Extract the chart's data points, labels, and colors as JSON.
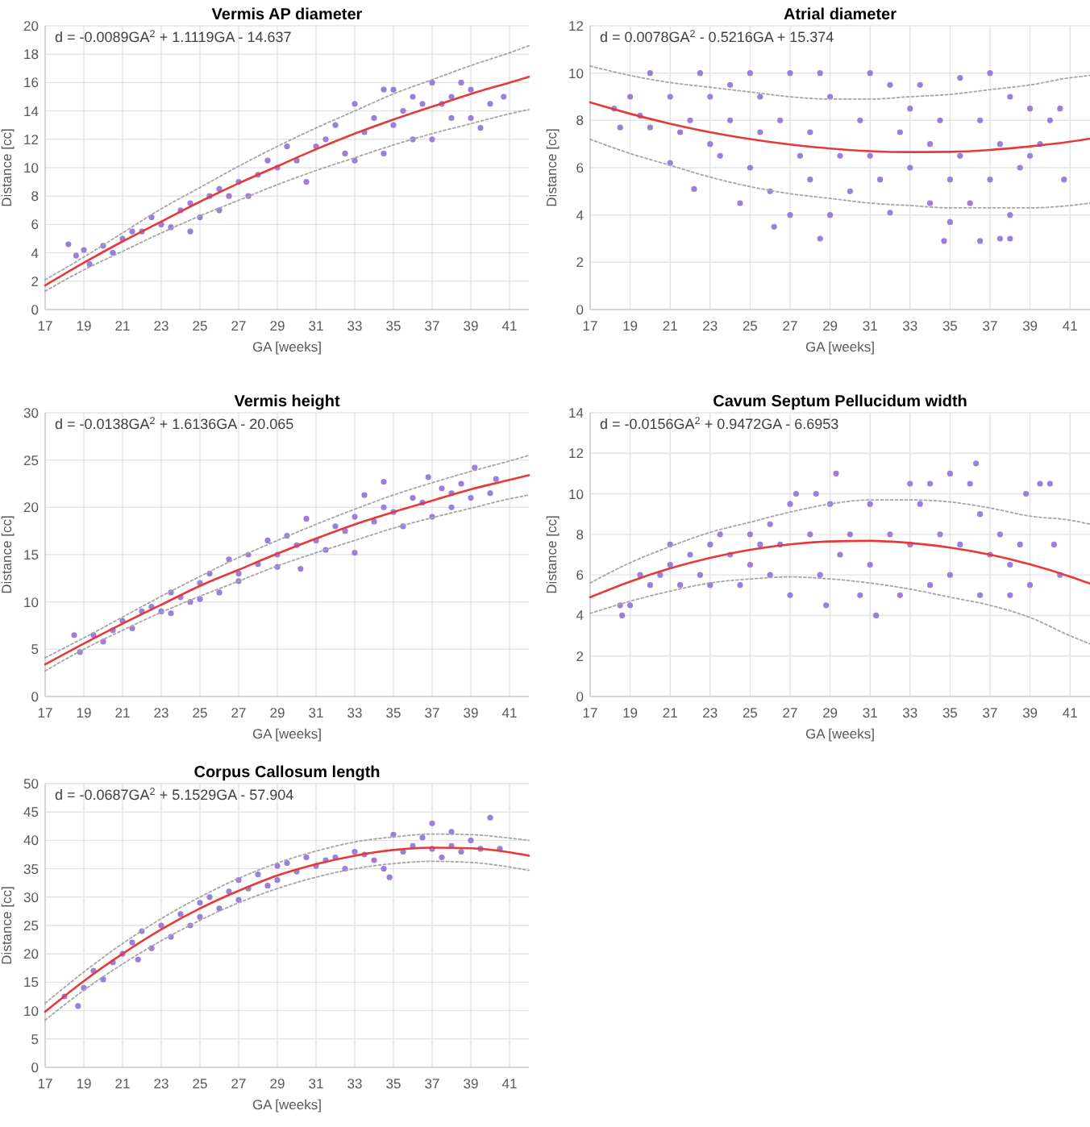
{
  "chart_data": [
    {
      "type": "scatter",
      "title": "Vermis AP diameter",
      "xlabel": "GA [weeks]",
      "ylabel": "Distance [cc]",
      "annotations": [
        "d = -0.0089GA$^{2}$ + 1.1119GA - 14.637"
      ],
      "xlim": [
        17,
        42
      ],
      "xticks": [
        17,
        19,
        21,
        23,
        25,
        27,
        29,
        31,
        33,
        35,
        37,
        39,
        41
      ],
      "ylim": [
        0,
        20
      ],
      "yticks": [
        0,
        2,
        4,
        6,
        8,
        10,
        12,
        14,
        16,
        18,
        20
      ],
      "grid": true,
      "series": [
        {
          "type": "scatter",
          "color": "#9b7fd9",
          "marker": "circle",
          "x": [
            18.2,
            18.6,
            19,
            19.3,
            20,
            20.5,
            21,
            21.5,
            22,
            22.5,
            23,
            23.5,
            24,
            24.5,
            24.5,
            25,
            25.5,
            26,
            26,
            26.5,
            27,
            27.5,
            28,
            28.5,
            29,
            29.5,
            30,
            30.5,
            31,
            31.5,
            32,
            32.5,
            33,
            33,
            33.5,
            34,
            34.5,
            34.5,
            35,
            35,
            35.5,
            36,
            36,
            36.5,
            37,
            37,
            37.5,
            38,
            38,
            38.5,
            39,
            39,
            39.5,
            40,
            40.7
          ],
          "values": [
            4.6,
            3.8,
            4.2,
            3.2,
            4.5,
            4.0,
            5.0,
            5.5,
            5.5,
            6.5,
            6.0,
            5.8,
            7.0,
            5.5,
            7.5,
            6.5,
            8.0,
            8.5,
            7.0,
            8.0,
            9.0,
            8.0,
            9.5,
            10.5,
            10.0,
            11.5,
            10.5,
            9.0,
            11.5,
            12.0,
            13.0,
            11.0,
            14.5,
            10.5,
            12.5,
            13.5,
            15.5,
            11.0,
            15.5,
            13.0,
            14.0,
            12.0,
            15.0,
            14.5,
            16.0,
            12.0,
            14.5,
            15.0,
            13.5,
            16.0,
            15.5,
            13.5,
            12.8,
            14.5,
            15.0
          ]
        },
        {
          "type": "line",
          "color": "#e8393a",
          "x": [
            17,
            19,
            21,
            23,
            25,
            27,
            29,
            31,
            33,
            35,
            37,
            39,
            41,
            42
          ],
          "values": [
            1.7,
            3.3,
            4.8,
            6.2,
            7.6,
            8.9,
            10.1,
            11.3,
            12.4,
            13.4,
            14.3,
            15.2,
            16.0,
            16.4
          ]
        },
        {
          "type": "line",
          "color": "#a6a6a6",
          "line_style": "dotted",
          "x": [
            17,
            19,
            21,
            23,
            25,
            27,
            29,
            31,
            33,
            35,
            37,
            39,
            41,
            42
          ],
          "values": [
            2.1,
            3.7,
            5.4,
            7.1,
            8.6,
            10.1,
            11.5,
            12.8,
            14.0,
            15.2,
            16.2,
            17.2,
            18.1,
            18.6
          ]
        },
        {
          "type": "line",
          "color": "#a6a6a6",
          "line_style": "dotted",
          "x": [
            17,
            19,
            21,
            23,
            25,
            27,
            29,
            31,
            33,
            35,
            37,
            39,
            41,
            42
          ],
          "values": [
            1.3,
            2.8,
            4.1,
            5.4,
            6.6,
            7.7,
            8.8,
            9.8,
            10.7,
            11.6,
            12.4,
            13.1,
            13.8,
            14.1
          ]
        }
      ]
    },
    {
      "type": "scatter",
      "title": "Atrial diameter",
      "xlabel": "GA [weeks]",
      "ylabel": "Distance [cc]",
      "annotations": [
        "d = 0.0078GA$^{2}$ - 0.5216GA + 15.374"
      ],
      "xlim": [
        17,
        42
      ],
      "xticks": [
        17,
        19,
        21,
        23,
        25,
        27,
        29,
        31,
        33,
        35,
        37,
        39,
        41
      ],
      "ylim": [
        0,
        12
      ],
      "yticks": [
        0,
        2,
        4,
        6,
        8,
        10,
        12
      ],
      "grid": true,
      "series": [
        {
          "type": "scatter",
          "color": "#9b7fd9",
          "marker": "circle",
          "x": [
            18.2,
            18.5,
            19,
            19.5,
            20,
            20,
            21,
            21,
            21.5,
            22,
            22.2,
            22.5,
            23,
            23,
            23.5,
            24,
            24,
            24.5,
            25,
            25,
            25.5,
            25.5,
            26,
            26.2,
            26.5,
            27,
            27,
            27.5,
            28,
            28,
            28.5,
            28.5,
            29,
            29,
            29.5,
            30,
            30.5,
            31,
            31,
            31.5,
            32,
            32,
            32.5,
            33,
            33,
            33.5,
            34,
            34,
            34.5,
            34.7,
            35,
            35,
            35.5,
            35.5,
            36,
            36.5,
            36.5,
            37,
            37,
            37.5,
            37.5,
            38,
            38,
            38,
            38.5,
            39,
            39,
            39.5,
            40,
            40.5,
            40.7
          ],
          "values": [
            8.5,
            7.7,
            9.0,
            8.2,
            10.0,
            7.7,
            9.0,
            6.2,
            7.5,
            8.0,
            5.1,
            10.0,
            9.0,
            7.0,
            6.5,
            9.5,
            8.0,
            4.5,
            10.0,
            6.0,
            7.5,
            9.0,
            5.0,
            3.5,
            8.0,
            10.0,
            4.0,
            6.5,
            7.5,
            5.5,
            10.0,
            3.0,
            9.0,
            4.0,
            6.5,
            5.0,
            8.0,
            10.0,
            6.5,
            5.5,
            9.5,
            4.1,
            7.5,
            8.5,
            6.0,
            9.5,
            7.0,
            4.5,
            8.0,
            2.9,
            3.7,
            5.5,
            9.8,
            6.5,
            4.5,
            8.0,
            2.9,
            10.0,
            5.5,
            3.0,
            7.0,
            9.0,
            4.0,
            3.0,
            6.0,
            8.5,
            6.5,
            7.0,
            8.0,
            8.5,
            5.5
          ]
        },
        {
          "type": "line",
          "color": "#e8393a",
          "x": [
            17,
            19,
            21,
            23,
            25,
            27,
            29,
            31,
            33,
            35,
            37,
            39,
            41,
            42
          ],
          "values": [
            8.76,
            8.28,
            7.86,
            7.5,
            7.21,
            6.98,
            6.81,
            6.7,
            6.66,
            6.67,
            6.75,
            6.9,
            7.1,
            7.23
          ]
        },
        {
          "type": "line",
          "color": "#a6a6a6",
          "line_style": "dotted",
          "x": [
            17,
            19,
            21,
            23,
            25,
            27,
            29,
            31,
            33,
            35,
            37,
            39,
            41,
            42
          ],
          "values": [
            10.3,
            9.9,
            9.6,
            9.4,
            9.2,
            9.0,
            8.9,
            8.9,
            9.0,
            9.1,
            9.3,
            9.5,
            9.8,
            9.9
          ]
        },
        {
          "type": "line",
          "color": "#a6a6a6",
          "line_style": "dotted",
          "x": [
            17,
            19,
            21,
            23,
            25,
            27,
            29,
            31,
            33,
            35,
            37,
            39,
            41,
            42
          ],
          "values": [
            7.2,
            6.6,
            6.1,
            5.6,
            5.2,
            4.9,
            4.7,
            4.5,
            4.4,
            4.3,
            4.3,
            4.3,
            4.4,
            4.5
          ]
        }
      ]
    },
    {
      "type": "scatter",
      "title": "Vermis height",
      "xlabel": "GA [weeks]",
      "ylabel": "Distance [cc]",
      "annotations": [
        "d = -0.0138GA$^{2}$ + 1.6136GA - 20.065"
      ],
      "xlim": [
        17,
        42
      ],
      "xticks": [
        17,
        19,
        21,
        23,
        25,
        27,
        29,
        31,
        33,
        35,
        37,
        39,
        41
      ],
      "ylim": [
        0,
        30
      ],
      "yticks": [
        0,
        5,
        10,
        15,
        20,
        25,
        30
      ],
      "grid": true,
      "series": [
        {
          "type": "scatter",
          "color": "#9b7fd9",
          "marker": "circle",
          "x": [
            18.5,
            18.8,
            19.5,
            20,
            20.5,
            21,
            21.5,
            22,
            22.5,
            23,
            23.5,
            23.5,
            24,
            24.5,
            25,
            25,
            25.5,
            26,
            26.5,
            27,
            27,
            27.5,
            28,
            28.5,
            29,
            29,
            29.5,
            30,
            30.2,
            30.5,
            31,
            31.5,
            32,
            32.5,
            33,
            33,
            33.5,
            34,
            34.5,
            34.5,
            35,
            35.5,
            36,
            36.5,
            36.8,
            37,
            37.5,
            38,
            38,
            38.5,
            39,
            39.2,
            40,
            40.3
          ],
          "values": [
            6.5,
            4.7,
            6.5,
            5.8,
            7.0,
            8.0,
            7.2,
            9.0,
            9.5,
            9.0,
            11.0,
            8.8,
            10.5,
            10.0,
            12.0,
            10.3,
            13.0,
            11.0,
            14.5,
            13.0,
            12.2,
            15.0,
            14.0,
            16.5,
            15.0,
            13.7,
            17.0,
            16.0,
            13.5,
            18.8,
            16.5,
            15.5,
            18.0,
            17.5,
            19.0,
            15.2,
            21.3,
            18.5,
            20.0,
            22.7,
            19.5,
            18.0,
            21.0,
            20.5,
            23.2,
            19.0,
            22.0,
            21.5,
            20.0,
            22.5,
            21.0,
            24.2,
            21.5,
            23.0
          ]
        },
        {
          "type": "line",
          "color": "#e8393a",
          "x": [
            17,
            19,
            21,
            23,
            25,
            27,
            29,
            31,
            33,
            35,
            37,
            39,
            41,
            42
          ],
          "values": [
            3.4,
            5.6,
            7.7,
            9.7,
            11.7,
            13.4,
            15.1,
            16.7,
            18.2,
            19.5,
            20.7,
            21.9,
            22.9,
            23.4
          ]
        },
        {
          "type": "line",
          "color": "#a6a6a6",
          "line_style": "dotted",
          "x": [
            17,
            19,
            21,
            23,
            25,
            27,
            29,
            31,
            33,
            35,
            37,
            39,
            41,
            42
          ],
          "values": [
            4.1,
            6.2,
            8.4,
            10.6,
            12.7,
            14.7,
            16.5,
            18.2,
            19.8,
            21.3,
            22.6,
            23.8,
            24.9,
            25.5
          ]
        },
        {
          "type": "line",
          "color": "#a6a6a6",
          "line_style": "dotted",
          "x": [
            17,
            19,
            21,
            23,
            25,
            27,
            29,
            31,
            33,
            35,
            37,
            39,
            41,
            42
          ],
          "values": [
            2.7,
            5.0,
            7.0,
            8.9,
            10.6,
            12.2,
            13.8,
            15.2,
            16.5,
            17.8,
            18.9,
            19.9,
            20.9,
            21.3
          ]
        }
      ]
    },
    {
      "type": "scatter",
      "title": "Cavum Septum Pellucidum width",
      "xlabel": "GA [weeks]",
      "ylabel": "Distance [cc]",
      "annotations": [
        "d = -0.0156GA$^{2}$ + 0.9472GA - 6.6953"
      ],
      "xlim": [
        17,
        42
      ],
      "xticks": [
        17,
        19,
        21,
        23,
        25,
        27,
        29,
        31,
        33,
        35,
        37,
        39,
        41
      ],
      "ylim": [
        0,
        14
      ],
      "yticks": [
        0,
        2,
        4,
        6,
        8,
        10,
        12,
        14
      ],
      "grid": true,
      "series": [
        {
          "type": "scatter",
          "color": "#9b7fd9",
          "marker": "circle",
          "x": [
            18.5,
            18.6,
            19,
            19.5,
            20,
            20.5,
            21,
            21,
            21.5,
            22,
            22.5,
            23,
            23,
            23.5,
            24,
            24.5,
            25,
            25,
            25.5,
            26,
            26,
            26.5,
            27,
            27,
            27.3,
            28,
            28.3,
            28.5,
            28.8,
            29,
            29.3,
            29.5,
            30,
            30.5,
            31,
            31,
            31.3,
            32,
            32.5,
            33,
            33,
            33.5,
            34,
            34,
            34.5,
            35,
            35,
            35.5,
            36,
            36.3,
            36.5,
            36.5,
            37,
            37.5,
            38,
            38,
            38.5,
            38.8,
            39,
            39.5,
            40,
            40.2,
            40.5
          ],
          "values": [
            4.5,
            4.0,
            4.5,
            6.0,
            5.5,
            6.0,
            7.5,
            6.5,
            5.5,
            7.0,
            6.0,
            7.5,
            5.5,
            8.0,
            7.0,
            5.5,
            8.0,
            6.5,
            7.5,
            8.5,
            6.0,
            7.5,
            9.5,
            5.0,
            10.0,
            8.0,
            10.0,
            6.0,
            4.5,
            9.5,
            11.0,
            7.0,
            8.0,
            5.0,
            9.5,
            6.5,
            4.0,
            8.0,
            5.0,
            10.5,
            7.5,
            9.5,
            10.5,
            5.5,
            8.0,
            11.0,
            6.0,
            7.5,
            10.5,
            11.5,
            9.0,
            5.0,
            7.0,
            8.0,
            6.5,
            5.0,
            7.5,
            10.0,
            5.5,
            10.5,
            10.5,
            7.5,
            6.0
          ]
        },
        {
          "type": "line",
          "color": "#e8393a",
          "x": [
            17,
            19,
            21,
            23,
            25,
            27,
            29,
            31,
            33,
            35,
            37,
            39,
            41,
            42
          ],
          "values": [
            4.9,
            5.67,
            6.32,
            6.84,
            7.24,
            7.51,
            7.65,
            7.68,
            7.57,
            7.35,
            7.0,
            6.52,
            5.92,
            5.57
          ]
        },
        {
          "type": "line",
          "color": "#a6a6a6",
          "line_style": "dotted",
          "x": [
            17,
            19,
            21,
            23,
            25,
            27,
            29,
            31,
            33,
            35,
            37,
            39,
            41,
            42
          ],
          "values": [
            5.6,
            6.6,
            7.4,
            8.1,
            8.6,
            9.1,
            9.5,
            9.7,
            9.7,
            9.6,
            9.3,
            8.9,
            8.7,
            8.5
          ]
        },
        {
          "type": "line",
          "color": "#a6a6a6",
          "line_style": "dotted",
          "x": [
            17,
            19,
            21,
            23,
            25,
            27,
            29,
            31,
            33,
            35,
            37,
            39,
            41,
            42
          ],
          "values": [
            4.1,
            4.7,
            5.2,
            5.6,
            5.8,
            5.9,
            5.8,
            5.6,
            5.3,
            4.9,
            4.5,
            3.9,
            3.0,
            2.6
          ]
        }
      ]
    },
    {
      "type": "scatter",
      "title": "Corpus Callosum length",
      "xlabel": "GA [weeks]",
      "ylabel": "Distance [cc]",
      "annotations": [
        "d = -0.0687GA$^{2}$ + 5.1529GA - 57.904"
      ],
      "xlim": [
        17,
        42
      ],
      "xticks": [
        17,
        19,
        21,
        23,
        25,
        27,
        29,
        31,
        33,
        35,
        37,
        39,
        41
      ],
      "ylim": [
        0,
        50
      ],
      "yticks": [
        0,
        5,
        10,
        15,
        20,
        25,
        30,
        35,
        40,
        45,
        50
      ],
      "grid": true,
      "series": [
        {
          "type": "scatter",
          "color": "#9b7fd9",
          "marker": "circle",
          "x": [
            18,
            18.7,
            19,
            19.5,
            20,
            20.5,
            21,
            21.5,
            21.8,
            22,
            22.5,
            23,
            23.5,
            24,
            24.5,
            25,
            25,
            25.5,
            26,
            26.5,
            27,
            27,
            27.5,
            28,
            28.5,
            29,
            29,
            29.5,
            30,
            30.5,
            31,
            31.5,
            32,
            32.5,
            33,
            33.5,
            34,
            34.5,
            34.8,
            35,
            35.5,
            36,
            36.5,
            37,
            37,
            37.5,
            38,
            38,
            38.5,
            39,
            39.5,
            40,
            40.5
          ],
          "values": [
            12.5,
            10.8,
            14.0,
            17.0,
            15.5,
            18.5,
            20.0,
            22.0,
            19.0,
            24.0,
            21.0,
            25.0,
            23.0,
            27.0,
            25.0,
            29.0,
            26.5,
            30.0,
            28.0,
            31.0,
            33.0,
            29.5,
            31.5,
            34.0,
            32.0,
            35.5,
            33.0,
            36.0,
            34.5,
            37.0,
            35.5,
            36.5,
            37.0,
            35.0,
            38.0,
            37.5,
            36.5,
            35.0,
            33.5,
            41.0,
            38.0,
            39.0,
            40.5,
            43.0,
            38.5,
            37.0,
            41.5,
            39.0,
            38.0,
            40.0,
            38.5,
            44.0,
            38.5
          ]
        },
        {
          "type": "line",
          "color": "#e8393a",
          "x": [
            17,
            19,
            21,
            23,
            25,
            27,
            29,
            31,
            33,
            35,
            37,
            39,
            41,
            42
          ],
          "values": [
            9.8,
            15.2,
            20.0,
            24.3,
            28.0,
            31.1,
            33.8,
            35.8,
            37.3,
            38.3,
            38.7,
            38.6,
            37.9,
            37.3
          ]
        },
        {
          "type": "line",
          "color": "#a6a6a6",
          "line_style": "dotted",
          "x": [
            17,
            19,
            21,
            23,
            25,
            27,
            29,
            31,
            33,
            35,
            37,
            39,
            41,
            42
          ],
          "values": [
            11.3,
            16.8,
            21.8,
            26.2,
            30.0,
            33.3,
            36.0,
            38.1,
            39.7,
            40.6,
            41.1,
            41.0,
            40.4,
            40.0
          ]
        },
        {
          "type": "line",
          "color": "#a6a6a6",
          "line_style": "dotted",
          "x": [
            17,
            19,
            21,
            23,
            25,
            27,
            29,
            31,
            33,
            35,
            37,
            39,
            41,
            42
          ],
          "values": [
            8.3,
            13.6,
            18.2,
            22.3,
            25.9,
            29.0,
            31.5,
            33.5,
            35.0,
            35.9,
            36.3,
            36.1,
            35.3,
            34.7
          ]
        }
      ]
    }
  ]
}
